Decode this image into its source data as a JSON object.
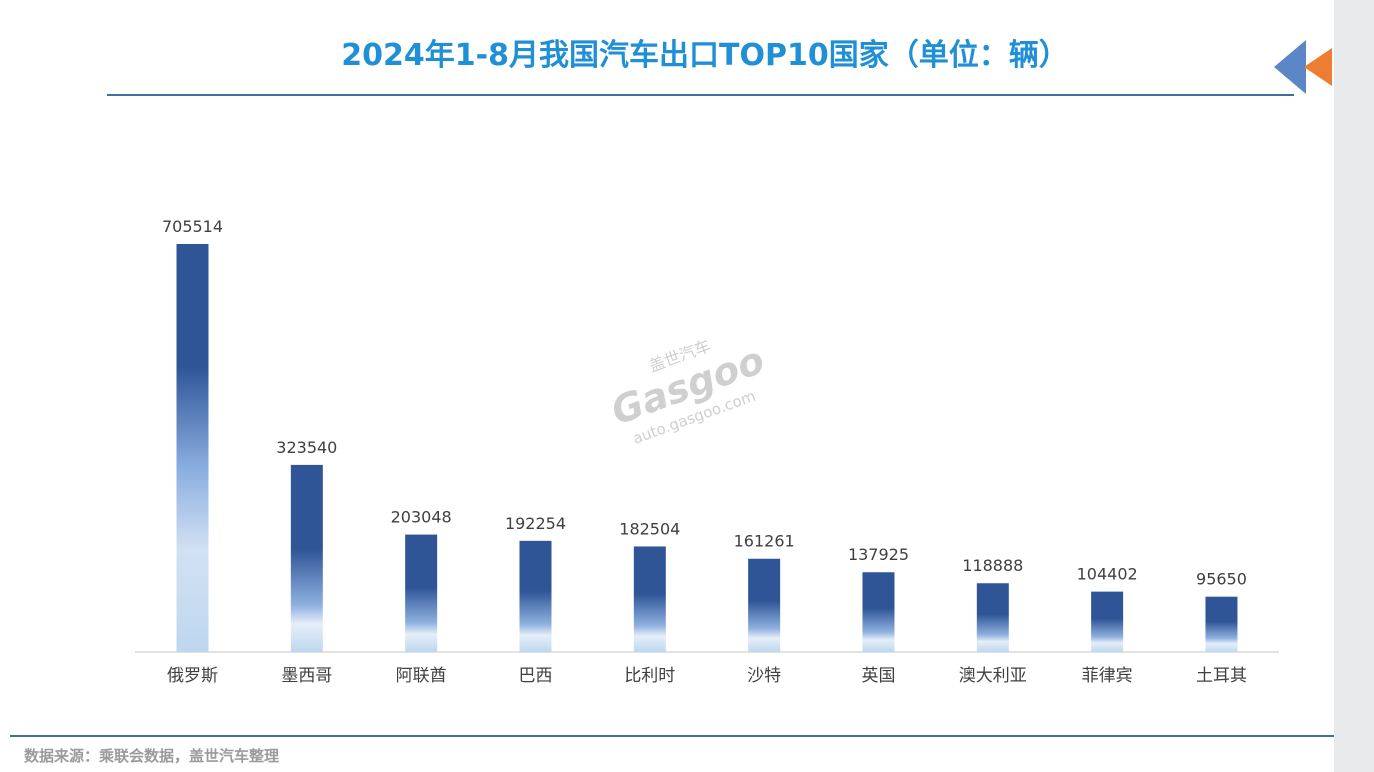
{
  "title": "2024年1-8月我国汽车出口TOP10国家（单位：辆）",
  "source": "数据来源：乘联会数据，盖世汽车整理",
  "watermark": {
    "brand_cn": "盖世汽车",
    "brand_en": "Gasgoo",
    "url": "auto.gasgoo.com"
  },
  "colors": {
    "title": "#1f8fd6",
    "bar_dark": "#2f5597",
    "bar_light": "#bdd7ee",
    "rule": "#3f6f9c",
    "arrow_blue": "#5b87c7",
    "arrow_orange": "#ed7d31"
  },
  "chart_data": {
    "type": "bar",
    "title": "2024年1-8月我国汽车出口TOP10国家（单位：辆）",
    "xlabel": "",
    "ylabel": "",
    "categories": [
      "俄罗斯",
      "墨西哥",
      "阿联酋",
      "巴西",
      "比利时",
      "沙特",
      "英国",
      "澳大利亚",
      "菲律宾",
      "土耳其"
    ],
    "values": [
      705514,
      323540,
      203048,
      192254,
      182504,
      161261,
      137925,
      118888,
      104402,
      95650
    ],
    "ylim": [
      0,
      705514
    ],
    "grid": false,
    "legend": "none"
  }
}
